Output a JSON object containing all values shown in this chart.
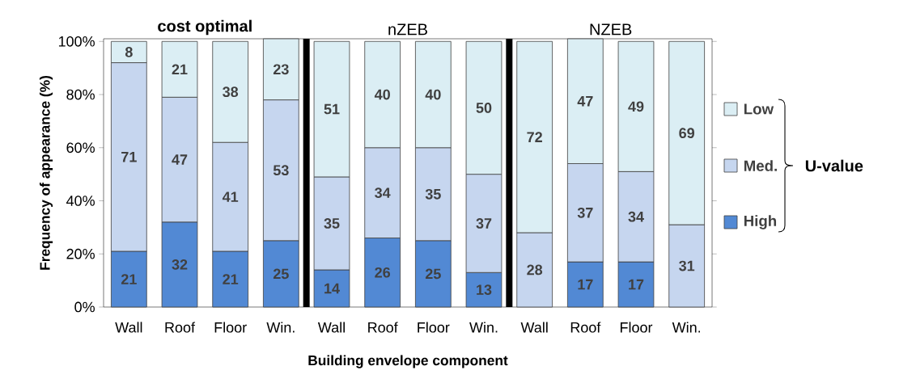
{
  "chart_data": {
    "type": "bar",
    "stacked": true,
    "xlabel": "Building envelope component",
    "ylabel": "Frequency of appearance (%)",
    "legend_title": "U-value",
    "legend": "right",
    "data_labels": true,
    "categories": [
      "Wall",
      "Roof",
      "Floor",
      "Win.",
      "Wall",
      "Roof",
      "Floor",
      "Win.",
      "Wall",
      "Roof",
      "Floor",
      "Win."
    ],
    "ylim": [
      0,
      101
    ],
    "yticks": [
      {
        "value": 0,
        "label": "0%"
      },
      {
        "value": 20,
        "label": "20%"
      },
      {
        "value": 40,
        "label": "40%"
      },
      {
        "value": 60,
        "label": "60%"
      },
      {
        "value": 80,
        "label": "80%"
      },
      {
        "value": 100,
        "label": "100%"
      }
    ],
    "series": [
      {
        "name": "High",
        "color": "#5289d4",
        "values": [
          21,
          32,
          21,
          25,
          14,
          26,
          25,
          13,
          null,
          17,
          17,
          null
        ]
      },
      {
        "name": "Med.",
        "color": "#c6d6ef",
        "values": [
          71,
          47,
          41,
          53,
          35,
          34,
          35,
          37,
          28,
          37,
          34,
          31
        ]
      },
      {
        "name": "Low",
        "color": "#dbeef4",
        "values": [
          8,
          21,
          38,
          23,
          51,
          40,
          40,
          50,
          72,
          47,
          49,
          69
        ]
      }
    ],
    "annotations": [
      "cost optimal",
      "nZEB",
      "NZEB"
    ]
  }
}
